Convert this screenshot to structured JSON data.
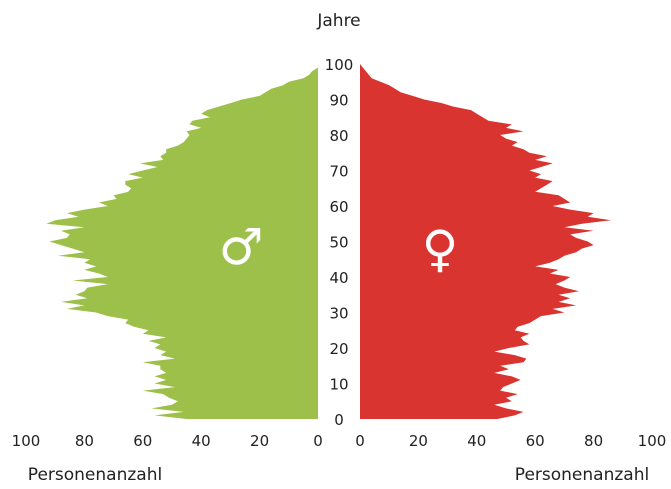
{
  "chart_data": {
    "type": "population-pyramid",
    "y_axis_title": "Jahre",
    "x_axis_title_left": "Personenanzahl",
    "x_axis_title_right": "Personenanzahl",
    "age_ticks": [
      "0",
      "10",
      "20",
      "30",
      "40",
      "50",
      "60",
      "70",
      "80",
      "90",
      "100"
    ],
    "count_ticks_left": [
      "100",
      "80",
      "60",
      "40",
      "20",
      "0"
    ],
    "count_ticks_right": [
      "0",
      "20",
      "40",
      "60",
      "80",
      "100"
    ],
    "xlim": [
      0,
      100
    ],
    "ylim": [
      0,
      100
    ],
    "colors": {
      "male": "#9cc04a",
      "female": "#d93430"
    },
    "male_symbol": "♂",
    "female_symbol": "♀",
    "ages": [
      0,
      1,
      2,
      3,
      4,
      5,
      6,
      7,
      8,
      9,
      10,
      11,
      12,
      13,
      14,
      15,
      16,
      17,
      18,
      19,
      20,
      21,
      22,
      23,
      24,
      25,
      26,
      27,
      28,
      29,
      30,
      31,
      32,
      33,
      34,
      35,
      36,
      37,
      38,
      39,
      40,
      41,
      42,
      43,
      44,
      45,
      46,
      47,
      48,
      49,
      50,
      51,
      52,
      53,
      54,
      55,
      56,
      57,
      58,
      59,
      60,
      61,
      62,
      63,
      64,
      65,
      66,
      67,
      68,
      69,
      70,
      71,
      72,
      73,
      74,
      75,
      76,
      77,
      78,
      79,
      80,
      81,
      82,
      83,
      84,
      85,
      86,
      87,
      88,
      89,
      90,
      91,
      92,
      93,
      94,
      95,
      96,
      97,
      98,
      99,
      100
    ],
    "series": [
      {
        "name": "male",
        "values": [
          45,
          56,
          46,
          57,
          50,
          48,
          51,
          53,
          60,
          49,
          56,
          52,
          56,
          52,
          54,
          54,
          60,
          49,
          54,
          52,
          56,
          54,
          58,
          52,
          60,
          58,
          63,
          66,
          65,
          72,
          76,
          86,
          80,
          88,
          79,
          83,
          80,
          79,
          72,
          84,
          72,
          75,
          80,
          76,
          80,
          78,
          89,
          80,
          84,
          88,
          92,
          86,
          85,
          88,
          80,
          93,
          90,
          82,
          86,
          80,
          72,
          75,
          69,
          70,
          65,
          64,
          66,
          66,
          60,
          65,
          60,
          55,
          61,
          53,
          54,
          52,
          52,
          48,
          46,
          45,
          44,
          45,
          40,
          44,
          43,
          37,
          40,
          38,
          34,
          30,
          26,
          20,
          18,
          16,
          12,
          10,
          5,
          3,
          2,
          0,
          0
        ]
      },
      {
        "name": "female",
        "values": [
          47,
          53,
          56,
          50,
          46,
          52,
          50,
          54,
          48,
          49,
          52,
          55,
          52,
          46,
          51,
          48,
          56,
          57,
          53,
          46,
          51,
          58,
          56,
          55,
          58,
          53,
          54,
          58,
          60,
          62,
          70,
          66,
          74,
          68,
          72,
          68,
          75,
          70,
          67,
          70,
          72,
          65,
          68,
          60,
          65,
          68,
          70,
          74,
          76,
          80,
          78,
          74,
          72,
          80,
          70,
          76,
          86,
          78,
          80,
          72,
          66,
          72,
          70,
          68,
          60,
          62,
          64,
          66,
          60,
          62,
          58,
          62,
          66,
          60,
          64,
          58,
          56,
          52,
          54,
          50,
          48,
          56,
          50,
          52,
          44,
          42,
          40,
          38,
          32,
          28,
          22,
          18,
          14,
          12,
          10,
          7,
          4,
          3,
          2,
          1,
          0
        ]
      }
    ]
  }
}
